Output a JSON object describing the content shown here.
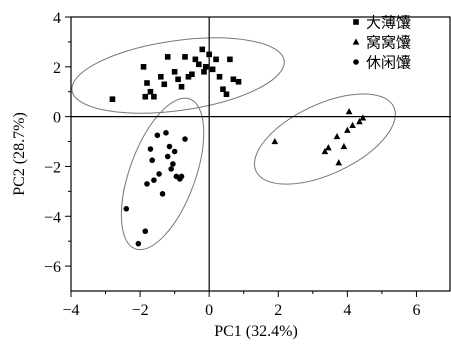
{
  "chart_data": {
    "type": "scatter",
    "xlabel": "PC1 (32.4%)",
    "ylabel": "PC2 (28.7%)",
    "xlim": [
      -4,
      7
    ],
    "ylim": [
      -7,
      4
    ],
    "xticks": [
      -4,
      -2,
      0,
      2,
      4,
      6
    ],
    "yticks": [
      4,
      2,
      0,
      -2,
      -4,
      -6
    ],
    "grid": false,
    "reference_lines": [
      "x=0",
      "y=0"
    ],
    "legend_position": "top-right",
    "series": [
      {
        "name": "大薄馕",
        "marker": "square",
        "points": [
          [
            -2.8,
            0.7
          ],
          [
            -1.9,
            2.0
          ],
          [
            -1.8,
            1.35
          ],
          [
            -1.85,
            0.8
          ],
          [
            -1.7,
            1.0
          ],
          [
            -1.6,
            0.8
          ],
          [
            -1.4,
            1.6
          ],
          [
            -1.3,
            1.3
          ],
          [
            -1.2,
            2.4
          ],
          [
            -1.0,
            1.8
          ],
          [
            -0.9,
            1.5
          ],
          [
            -0.8,
            1.2
          ],
          [
            -0.7,
            2.4
          ],
          [
            -0.6,
            1.6
          ],
          [
            -0.5,
            1.7
          ],
          [
            -0.4,
            2.3
          ],
          [
            -0.3,
            2.1
          ],
          [
            -0.2,
            2.7
          ],
          [
            -0.15,
            1.8
          ],
          [
            -0.1,
            2.0
          ],
          [
            0.0,
            2.5
          ],
          [
            0.1,
            1.9
          ],
          [
            0.2,
            2.3
          ],
          [
            0.3,
            1.6
          ],
          [
            0.4,
            1.1
          ],
          [
            0.5,
            0.9
          ],
          [
            0.6,
            2.3
          ],
          [
            0.7,
            1.5
          ],
          [
            0.85,
            1.4
          ]
        ]
      },
      {
        "name": "窝窝馕",
        "marker": "triangle",
        "points": [
          [
            1.9,
            -1.0
          ],
          [
            3.35,
            -1.4
          ],
          [
            3.45,
            -1.25
          ],
          [
            3.7,
            -0.8
          ],
          [
            3.75,
            -1.85
          ],
          [
            3.9,
            -1.2
          ],
          [
            4.0,
            -0.55
          ],
          [
            4.05,
            0.2
          ],
          [
            4.15,
            -0.35
          ],
          [
            4.35,
            -0.2
          ],
          [
            4.45,
            -0.05
          ]
        ]
      },
      {
        "name": "休闲馕",
        "marker": "circle",
        "points": [
          [
            -2.4,
            -3.7
          ],
          [
            -2.05,
            -5.1
          ],
          [
            -1.85,
            -4.6
          ],
          [
            -1.8,
            -2.7
          ],
          [
            -1.7,
            -1.3
          ],
          [
            -1.65,
            -1.75
          ],
          [
            -1.6,
            -2.55
          ],
          [
            -1.5,
            -0.75
          ],
          [
            -1.45,
            -2.3
          ],
          [
            -1.35,
            -3.1
          ],
          [
            -1.25,
            -0.65
          ],
          [
            -1.2,
            -1.6
          ],
          [
            -1.15,
            -1.2
          ],
          [
            -1.1,
            -2.1
          ],
          [
            -1.05,
            -1.9
          ],
          [
            -1.0,
            -1.4
          ],
          [
            -0.95,
            -2.4
          ],
          [
            -0.85,
            -2.5
          ],
          [
            -0.8,
            -2.4
          ],
          [
            -0.7,
            -0.9
          ]
        ]
      }
    ],
    "ellipses": [
      {
        "series": "大薄馕",
        "cx": -0.9,
        "cy": 1.65,
        "rx": 3.1,
        "ry": 1.4,
        "angle_deg": 8
      },
      {
        "series": "窝窝馕",
        "cx": 3.35,
        "cy": -0.9,
        "rx": 2.2,
        "ry": 1.4,
        "angle_deg": 25
      },
      {
        "series": "休闲馕",
        "cx": -1.35,
        "cy": -2.3,
        "rx": 0.95,
        "ry": 3.2,
        "angle_deg": -20
      }
    ]
  }
}
